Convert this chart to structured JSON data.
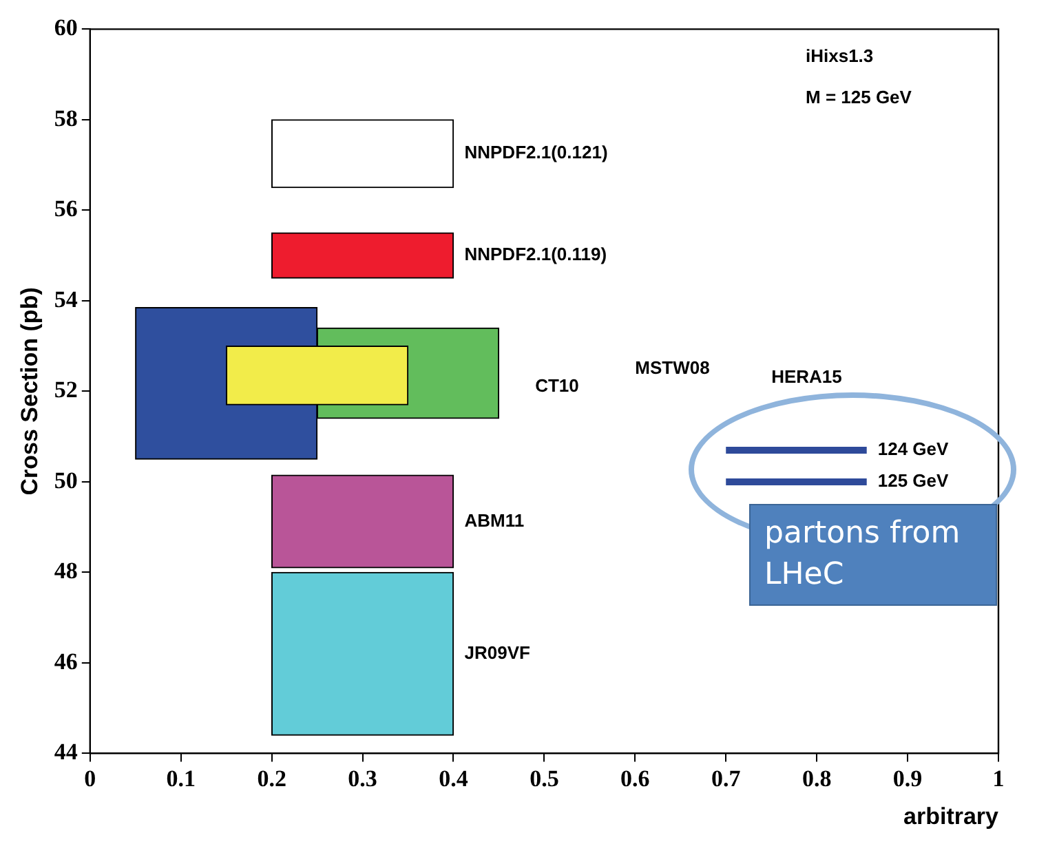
{
  "chart_data": {
    "type": "bar",
    "ylabel": "Cross Section (pb)",
    "xlabel": "arbitrary",
    "xlim": [
      0,
      1
    ],
    "xticks": [
      0,
      0.1,
      0.2,
      0.3,
      0.4,
      0.5,
      0.6,
      0.7,
      0.8,
      0.9,
      1
    ],
    "ylim": [
      44,
      60
    ],
    "yticks": [
      44,
      46,
      48,
      50,
      52,
      54,
      56,
      58,
      60
    ],
    "grid": false,
    "legend": false,
    "series": [
      {
        "name": "NNPDF2.1(0.121)",
        "color": "#ffffff",
        "x": [
          0.3
        ],
        "base": [
          56.5
        ],
        "values": [
          1.5
        ]
      },
      {
        "name": "NNPDF2.1(0.119)",
        "color": "#ee1c2e",
        "x": [
          0.3
        ],
        "base": [
          54.5
        ],
        "values": [
          1
        ]
      },
      {
        "color": "#2f4f9e",
        "x": [
          0.15
        ],
        "base": [
          50.5
        ],
        "values": [
          3.35
        ]
      },
      {
        "color": "#62bd5c",
        "x": [
          0.35
        ],
        "base": [
          51.4
        ],
        "values": [
          2
        ]
      },
      {
        "color": "#f2ec4a",
        "x": [
          0.25
        ],
        "base": [
          51.7
        ],
        "values": [
          1.3
        ]
      },
      {
        "name": "ABM11",
        "color": "#b95598",
        "x": [
          0.3
        ],
        "base": [
          48.1
        ],
        "values": [
          2.05
        ]
      },
      {
        "name": "JR09VF",
        "color": "#62ccd8",
        "x": [
          0.3
        ],
        "base": [
          44.4
        ],
        "values": [
          3.6
        ]
      },
      {
        "name": "124 GeV",
        "type": "line",
        "color": "#2e4a9a",
        "x": [
          0.7,
          0.855
        ],
        "values": [
          50.7,
          50.7
        ]
      },
      {
        "name": "125 GeV",
        "type": "line",
        "color": "#2e4a9a",
        "x": [
          0.7,
          0.855
        ],
        "values": [
          50,
          50
        ]
      }
    ],
    "annotations": [
      "CT10",
      "MSTW08",
      "HERA15",
      "iHixs1.3",
      "M = 125 GeV",
      "partons from LHeC"
    ]
  }
}
